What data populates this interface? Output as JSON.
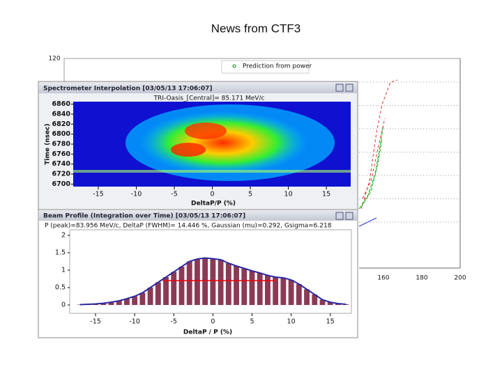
{
  "title": "News from CTF3",
  "background_plot": {
    "legend": [
      "Prediction from power"
    ],
    "yticks": [
      120
    ],
    "xticks": [
      160,
      180,
      200
    ]
  },
  "spectrometer": {
    "title": "Spectrometer Interpolation [03/05/13 17:06:07]",
    "subtitle": "TRI-Oasis_[Central]= 85.171 MeV/c",
    "ylabel": "Time (nsec)",
    "xlabel": "DeltaP/P (%)",
    "ylim": [
      6695,
      6865
    ],
    "yticks": [
      6700,
      6720,
      6740,
      6760,
      6780,
      6800,
      6820,
      6840,
      6860
    ],
    "xlim": [
      -18.3,
      18.2
    ],
    "xticks": [
      -15,
      -10,
      -5,
      0,
      5,
      10,
      15
    ]
  },
  "profile": {
    "title": "Beam Profile (Integration over Time) [03/05/13 17:06:07]",
    "info": "P (peak)=83.956 MeV/c, DeltaP (FWHM)= 14.446 %, Gaussian (mu)=0.292, Gsigma=6.218",
    "xlabel": "DeltaP / P (%)",
    "ylim": [
      -0.24,
      2.16
    ],
    "yticks": [
      0,
      0.5,
      1,
      1.5,
      2
    ],
    "xlim": [
      -18.3,
      17.7
    ],
    "xticks": [
      -15,
      -10,
      -5,
      0,
      5,
      10,
      15
    ],
    "x": [
      -17,
      -16,
      -15,
      -14,
      -13,
      -12,
      -11,
      -10,
      -9,
      -8,
      -7,
      -6,
      -5,
      -4,
      -3,
      -2,
      -1,
      0,
      1,
      2,
      3,
      4,
      5,
      6,
      7,
      8,
      9,
      10,
      11,
      12,
      13,
      14,
      15,
      16,
      17
    ],
    "values": [
      0.01,
      0.02,
      0.03,
      0.05,
      0.08,
      0.12,
      0.18,
      0.25,
      0.35,
      0.5,
      0.65,
      0.8,
      0.95,
      1.1,
      1.25,
      1.32,
      1.35,
      1.33,
      1.3,
      1.2,
      1.12,
      1.05,
      0.98,
      0.92,
      0.85,
      0.8,
      0.78,
      0.72,
      0.6,
      0.45,
      0.3,
      0.15,
      0.08,
      0.04,
      0.02
    ],
    "fwhm_line": {
      "y": 0.7,
      "x": [
        -6.4,
        8.0
      ]
    }
  }
}
